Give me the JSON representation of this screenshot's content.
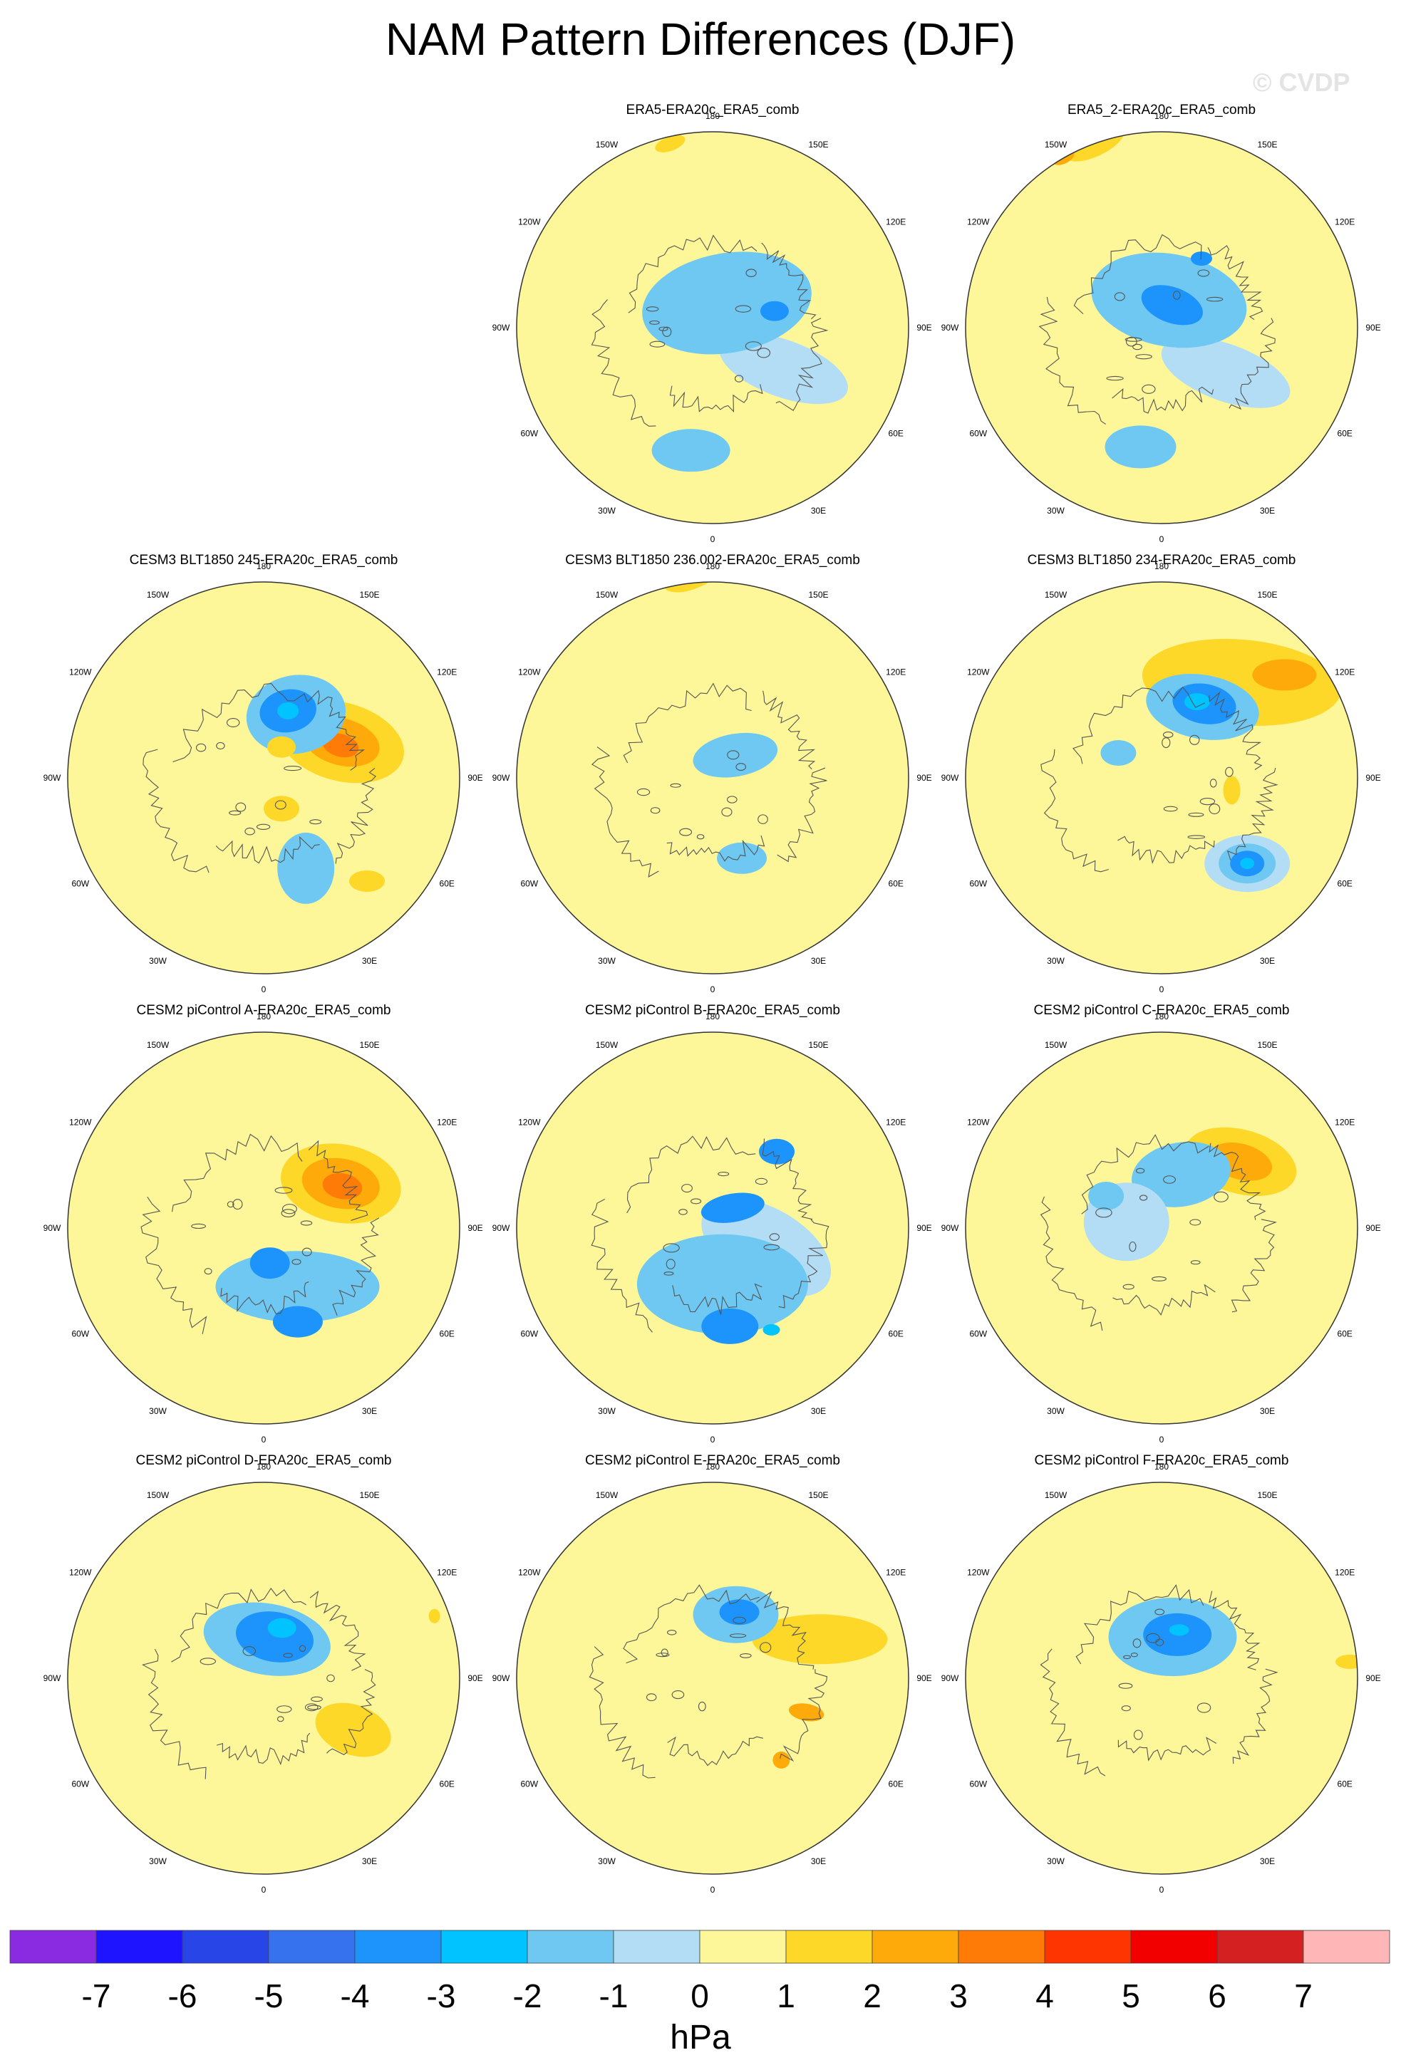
{
  "title": "NAM Pattern Differences (DJF)",
  "watermark": "© CVDP",
  "lon_labels": [
    "180",
    "150E",
    "120E",
    "90E",
    "60E",
    "30E",
    "0",
    "30W",
    "60W",
    "90W",
    "120W",
    "150W"
  ],
  "panels": [
    {
      "title": "ERA5-ERA20c_ERA5_comb",
      "row": 0,
      "col": 1,
      "blobs": [
        [
          "b1",
          60,
          115,
          95,
          40,
          20
        ],
        [
          "b2",
          150,
          40,
          120,
          70,
          -10
        ],
        [
          "b2",
          -10,
          175,
          55,
          30,
          0
        ],
        [
          "b3",
          105,
          90,
          20,
          14,
          0
        ],
        [
          "b3",
          95,
          345,
          48,
          12,
          90
        ],
        [
          "y2",
          193,
          265,
          22,
          10,
          -20
        ]
      ]
    },
    {
      "title": "ERA5_2-ERA20c_ERA5_comb",
      "row": 0,
      "col": 2,
      "blobs": [
        [
          "b1",
          55,
          110,
          95,
          40,
          20
        ],
        [
          "b2",
          165,
          40,
          110,
          65,
          10
        ],
        [
          "b2",
          -10,
          170,
          50,
          30,
          0
        ],
        [
          "b3",
          155,
          35,
          45,
          25,
          20
        ],
        [
          "b3",
          150,
          112,
          15,
          10,
          0
        ],
        [
          "y2",
          200,
          275,
          45,
          18,
          -25
        ],
        [
          "y3",
          210,
          275,
          16,
          8,
          -25
        ]
      ]
    },
    {
      "title": "CESM3 BLT1850 245-ERA20c_ERA5_comb",
      "row": 1,
      "col": 0,
      "blobs": [
        [
          "y2",
          115,
          120,
          90,
          55,
          15
        ],
        [
          "y3",
          115,
          120,
          55,
          33,
          15
        ],
        [
          "y4",
          113,
          117,
          26,
          16,
          15
        ],
        [
          "b2",
          153,
          100,
          70,
          55,
          -10
        ],
        [
          "b2",
          25,
          140,
          40,
          50,
          0
        ],
        [
          "b3",
          160,
          100,
          40,
          30,
          -10
        ],
        [
          "b4",
          160,
          100,
          15,
          12,
          0
        ],
        [
          "y2",
          30,
          50,
          25,
          18,
          0
        ],
        [
          "y2",
          45,
          205,
          25,
          15,
          0
        ],
        [
          "y2",
          150,
          50,
          20,
          15,
          0
        ]
      ]
    },
    {
      "title": "CESM3 BLT1850 236.002-ERA20c_ERA5_comb",
      "row": 1,
      "col": 1,
      "blobs": [
        [
          "b2",
          135,
          45,
          60,
          30,
          -10
        ],
        [
          "b2",
          20,
          120,
          35,
          22,
          0
        ],
        [
          "y2",
          185,
          290,
          48,
          22,
          -25
        ]
      ]
    },
    {
      "title": "CESM3 BLT1850 234-ERA20c_ERA5_comb",
      "row": 1,
      "col": 2,
      "blobs": [
        [
          "y2",
          140,
          175,
          140,
          60,
          5
        ],
        [
          "y3",
          130,
          225,
          45,
          22,
          0
        ],
        [
          "b1",
          45,
          170,
          60,
          40,
          0
        ],
        [
          "b2",
          45,
          170,
          40,
          28,
          0
        ],
        [
          "b3",
          45,
          170,
          24,
          18,
          0
        ],
        [
          "b4",
          45,
          170,
          10,
          8,
          0
        ],
        [
          "b2",
          150,
          115,
          80,
          45,
          10
        ],
        [
          "b3",
          150,
          120,
          45,
          28,
          10
        ],
        [
          "b4",
          155,
          118,
          18,
          12,
          0
        ],
        [
          "b2",
          240,
          70,
          25,
          18,
          0
        ],
        [
          "y2",
          80,
          100,
          12,
          20,
          0
        ]
      ]
    },
    {
      "title": "CESM2 piControl A-ERA20c_ERA5_comb",
      "row": 2,
      "col": 0,
      "blobs": [
        [
          "y2",
          120,
          125,
          85,
          55,
          10
        ],
        [
          "y3",
          120,
          125,
          55,
          35,
          10
        ],
        [
          "y4",
          118,
          125,
          28,
          18,
          10
        ],
        [
          "b2",
          30,
          95,
          115,
          50,
          0
        ],
        [
          "b3",
          20,
          140,
          35,
          22,
          0
        ],
        [
          "b3",
          10,
          50,
          28,
          22,
          0
        ]
      ]
    },
    {
      "title": "CESM2 piControl B-ERA20c_ERA5_comb",
      "row": 2,
      "col": 1,
      "blobs": [
        [
          "b1",
          70,
          80,
          100,
          55,
          30
        ],
        [
          "b2",
          10,
          80,
          120,
          70,
          0
        ],
        [
          "b3",
          135,
          40,
          45,
          20,
          -10
        ],
        [
          "b3",
          140,
          140,
          25,
          18,
          0
        ],
        [
          "b3",
          10,
          140,
          40,
          25,
          0
        ],
        [
          "b4",
          30,
          165,
          12,
          8,
          0
        ]
      ]
    },
    {
      "title": "CESM2 piControl C-ERA20c_ERA5_comb",
      "row": 2,
      "col": 2,
      "blobs": [
        [
          "y2",
          130,
          145,
          80,
          45,
          15
        ],
        [
          "y3",
          130,
          145,
          45,
          25,
          15
        ],
        [
          "b2",
          160,
          80,
          70,
          45,
          -10
        ],
        [
          "b1",
          260,
          50,
          60,
          55,
          0
        ],
        [
          "b2",
          240,
          90,
          25,
          20,
          0
        ]
      ]
    },
    {
      "title": "CESM2 piControl D-ERA20c_ERA5_comb",
      "row": 3,
      "col": 0,
      "blobs": [
        [
          "y2",
          60,
          145,
          55,
          35,
          20
        ],
        [
          "b2",
          175,
          55,
          90,
          50,
          10
        ],
        [
          "b3",
          165,
          60,
          55,
          35,
          10
        ],
        [
          "b4",
          160,
          75,
          20,
          14,
          0
        ],
        [
          "y2",
          125,
          290,
          12,
          8,
          0
        ],
        [
          "y2",
          110,
          255,
          8,
          10,
          0
        ]
      ]
    },
    {
      "title": "CESM2 piControl E-ERA20c_ERA5_comb",
      "row": 3,
      "col": 1,
      "blobs": [
        [
          "y2",
          110,
          160,
          95,
          35,
          0
        ],
        [
          "y3",
          70,
          140,
          25,
          12,
          10
        ],
        [
          "y3",
          40,
          150,
          12,
          12,
          0
        ],
        [
          "b2",
          160,
          95,
          60,
          40,
          0
        ],
        [
          "b3",
          158,
          100,
          28,
          18,
          0
        ],
        [
          "y1",
          225,
          225,
          30,
          40,
          0
        ]
      ]
    },
    {
      "title": "CESM2 piControl F-ERA20c_ERA5_comb",
      "row": 3,
      "col": 2,
      "blobs": [
        [
          "b2",
          165,
          60,
          90,
          55,
          0
        ],
        [
          "b3",
          160,
          65,
          48,
          30,
          0
        ],
        [
          "b4",
          160,
          72,
          14,
          8,
          0
        ],
        [
          "y2",
          95,
          265,
          20,
          10,
          0
        ]
      ]
    }
  ],
  "chart_data": {
    "type": "heatmap",
    "title": "NAM Pattern Differences (DJF)",
    "projection": "polar stereographic, Northern Hemisphere, 0 meridian at bottom",
    "colorbar": {
      "label": "hPa",
      "ticks": [
        "-7",
        "-6",
        "-5",
        "-4",
        "-3",
        "-2",
        "-1",
        "0",
        "1",
        "2",
        "3",
        "4",
        "5",
        "6",
        "7"
      ],
      "colors": [
        "#8a2be2",
        "#1e14ff",
        "#2845e8",
        "#3772ee",
        "#1c94fc",
        "#00c3ff",
        "#6ec8f2",
        "#b2ddf5",
        "#fdf79a",
        "#fdd829",
        "#fdaa0a",
        "#ff7b08",
        "#ff3500",
        "#f20000",
        "#d42020",
        "#ffb6b6"
      ]
    },
    "panel_titles": [
      "ERA5-ERA20c_ERA5_comb",
      "ERA5_2-ERA20c_ERA5_comb",
      "CESM3 BLT1850 245-ERA20c_ERA5_comb",
      "CESM3 BLT1850 236.002-ERA20c_ERA5_comb",
      "CESM3 BLT1850 234-ERA20c_ERA5_comb",
      "CESM2 piControl A-ERA20c_ERA5_comb",
      "CESM2 piControl B-ERA20c_ERA5_comb",
      "CESM2 piControl C-ERA20c_ERA5_comb",
      "CESM2 piControl D-ERA20c_ERA5_comb",
      "CESM2 piControl E-ERA20c_ERA5_comb",
      "CESM2 piControl F-ERA20c_ERA5_comb"
    ]
  }
}
